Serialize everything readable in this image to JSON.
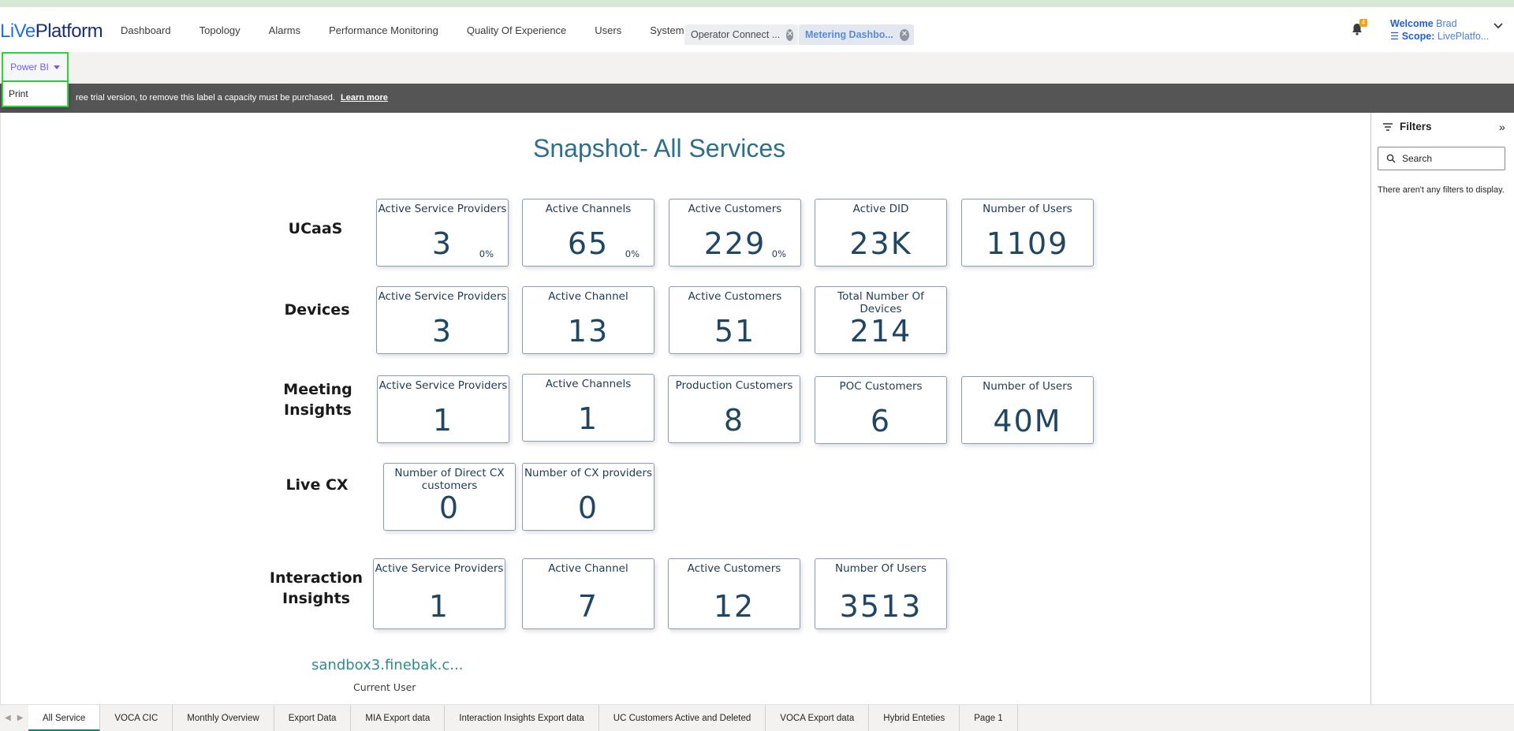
{
  "header": {
    "logo_live": "LiVe",
    "logo_platform": "Platform",
    "nav": [
      "Dashboard",
      "Topology",
      "Alarms",
      "Performance Monitoring",
      "Quality Of Experience",
      "Users",
      "System"
    ],
    "tabs": [
      {
        "label": "Operator Connect ...",
        "active": false
      },
      {
        "label": "Metering Dashbo...",
        "active": true
      }
    ],
    "notification_count": "4",
    "welcome_label": "Welcome",
    "welcome_name": "Brad",
    "scope_label": "Scope:",
    "scope_value": "LivePlatfo..."
  },
  "toolbar": {
    "powerbi_label": "Power BI",
    "menu_items": [
      "Print"
    ]
  },
  "banner": {
    "text": "ree trial version, to remove this label a capacity must be purchased.",
    "link": "Learn more"
  },
  "report": {
    "title": "Snapshot- All Services",
    "sections": [
      {
        "label_lines": [
          "UCaaS"
        ],
        "cards": [
          {
            "title": "Active Service Providers",
            "value": "3",
            "pct": "0%"
          },
          {
            "title": "Active Channels",
            "value": "65",
            "pct": "0%"
          },
          {
            "title": "Active Customers",
            "value": "229",
            "pct": "0%"
          },
          {
            "title": "Active DID",
            "value": "23K",
            "pct": ""
          },
          {
            "title": "Number of Users",
            "value": "1109",
            "pct": ""
          }
        ]
      },
      {
        "label_lines": [
          "Devices"
        ],
        "cards": [
          {
            "title": "Active Service Providers",
            "value": "3",
            "pct": ""
          },
          {
            "title": "Active Channel",
            "value": "13",
            "pct": ""
          },
          {
            "title": "Active Customers",
            "value": "51",
            "pct": ""
          },
          {
            "title": "Total Number Of Devices",
            "value": "214",
            "pct": ""
          }
        ]
      },
      {
        "label_lines": [
          "Meeting",
          "Insights"
        ],
        "cards": [
          {
            "title": "Active Service Providers",
            "value": "1",
            "pct": ""
          },
          {
            "title": "Active Channels",
            "value": "1",
            "pct": ""
          },
          {
            "title": "Production Customers",
            "value": "8",
            "pct": ""
          },
          {
            "title": "POC Customers",
            "value": "6",
            "pct": ""
          },
          {
            "title": "Number of Users",
            "value": "40M",
            "pct": ""
          }
        ]
      },
      {
        "label_lines": [
          "Live CX"
        ],
        "cards": [
          {
            "title": "Number of Direct CX customers",
            "value": "0",
            "pct": ""
          },
          {
            "title": "Number of CX providers",
            "value": "0",
            "pct": ""
          }
        ]
      },
      {
        "label_lines": [
          "Interaction",
          "Insights"
        ],
        "cards": [
          {
            "title": "Active Service Providers",
            "value": "1",
            "pct": ""
          },
          {
            "title": "Active Channel",
            "value": "7",
            "pct": ""
          },
          {
            "title": "Active Customers",
            "value": "12",
            "pct": ""
          },
          {
            "title": "Number Of Users",
            "value": "3513",
            "pct": ""
          }
        ]
      }
    ],
    "current_user_value": "sandbox3.finebak.c...",
    "current_user_label": "Current User"
  },
  "filters": {
    "title": "Filters",
    "search_placeholder": "Search",
    "empty_text": "There aren't any filters to display."
  },
  "pages": {
    "tabs": [
      "All Service",
      "VOCA CIC",
      "Monthly Overview",
      "Export Data",
      "MIA Export data",
      "Interaction Insights Export data",
      "UC Customers Active and Deleted",
      "VOCA Export data",
      "Hybrid Enteties",
      "Page 1"
    ],
    "active": "All Service"
  }
}
